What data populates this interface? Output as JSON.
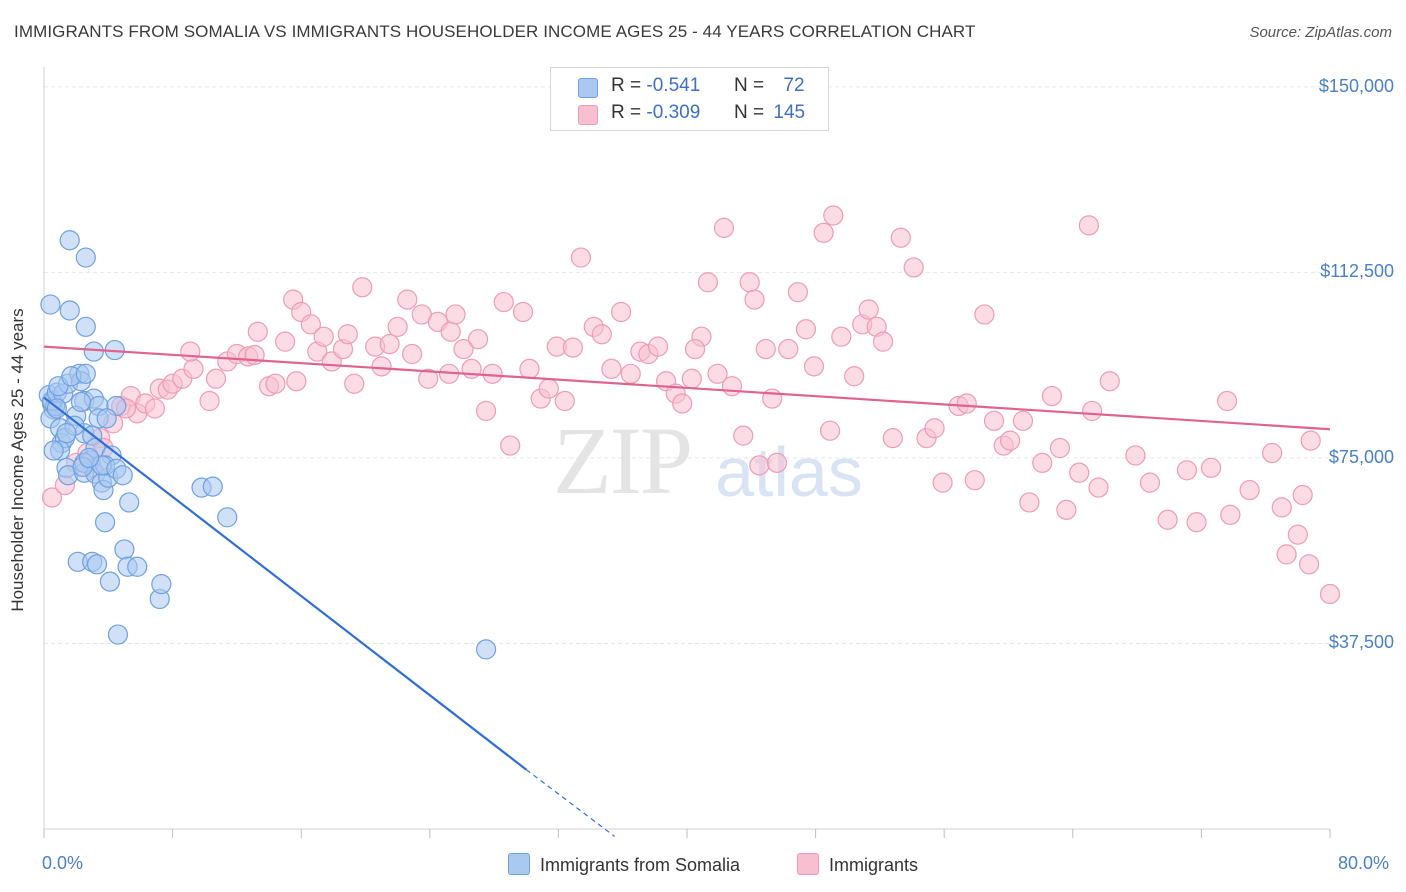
{
  "title": "IMMIGRANTS FROM SOMALIA VS IMMIGRANTS HOUSEHOLDER INCOME AGES 25 - 44 YEARS CORRELATION CHART",
  "source": "Source: ZipAtlas.com",
  "watermark": {
    "zip": "ZIP",
    "atlas": "atlas"
  },
  "legend_top": {
    "r_label": "R =",
    "n_label": "N =",
    "rows": [
      {
        "r": "-0.541",
        "n": "72"
      },
      {
        "r": "-0.309",
        "n": "145"
      }
    ]
  },
  "colors": {
    "blue_fill": "#a9c9f0",
    "blue_stroke": "#6fa0df",
    "blue_line": "#2f6fd6",
    "pink_fill": "#f7bfd0",
    "pink_stroke": "#ee9bb6",
    "pink_line": "#e0628f",
    "tick_text": "#4a7fc9",
    "grid": "#e6e6e6"
  },
  "chart_data": {
    "type": "scatter",
    "title": "IMMIGRANTS FROM SOMALIA VS IMMIGRANTS HOUSEHOLDER INCOME AGES 25 - 44 YEARS CORRELATION CHART",
    "xlabel": "",
    "ylabel": "Householder Income Ages 25 - 44 years",
    "xlim": [
      0,
      80
    ],
    "ylim": [
      0,
      153000
    ],
    "x_tick_labels": [
      "0.0%",
      "80.0%"
    ],
    "y_ticks": [
      {
        "value": 37500,
        "label": "$37,500"
      },
      {
        "value": 75000,
        "label": "$75,000"
      },
      {
        "value": 112500,
        "label": "$112,500"
      },
      {
        "value": 150000,
        "label": "$150,000"
      }
    ],
    "grid": true,
    "legend_position": "bottom-center",
    "series": [
      {
        "name": "Immigrants from Somalia",
        "color": "blue",
        "trend": {
          "x": [
            0,
            30,
            35.5
          ],
          "y": [
            87200,
            12000,
            -1500
          ],
          "solid_until": 30
        },
        "points": [
          [
            0.3,
            87700
          ],
          [
            0.5,
            86000
          ],
          [
            0.6,
            84800
          ],
          [
            0.4,
            83000
          ],
          [
            0.7,
            85500
          ],
          [
            0.5,
            86500
          ],
          [
            0.8,
            88200
          ],
          [
            0.4,
            106000
          ],
          [
            1.2,
            88000
          ],
          [
            1.5,
            90000
          ],
          [
            1.0,
            81000
          ],
          [
            1.1,
            78000
          ],
          [
            1.3,
            79000
          ],
          [
            1.0,
            76500
          ],
          [
            1.4,
            73000
          ],
          [
            1.5,
            71500
          ],
          [
            1.6,
            119000
          ],
          [
            2.6,
            115500
          ],
          [
            1.6,
            104800
          ],
          [
            2.6,
            101500
          ],
          [
            2.2,
            92000
          ],
          [
            2.3,
            90500
          ],
          [
            2.5,
            86500
          ],
          [
            3.1,
            96500
          ],
          [
            4.4,
            96800
          ],
          [
            3.1,
            87000
          ],
          [
            3.4,
            85500
          ],
          [
            4.5,
            85500
          ],
          [
            3.4,
            83000
          ],
          [
            2.5,
            80000
          ],
          [
            3.0,
            79500
          ],
          [
            2.9,
            74500
          ],
          [
            2.5,
            72000
          ],
          [
            3.2,
            77000
          ],
          [
            4.2,
            75500
          ],
          [
            2.5,
            74000
          ],
          [
            3.2,
            71800
          ],
          [
            3.6,
            70000
          ],
          [
            3.7,
            68500
          ],
          [
            4.0,
            71000
          ],
          [
            2.4,
            73200
          ],
          [
            2.1,
            54000
          ],
          [
            3.0,
            54000
          ],
          [
            3.3,
            53500
          ],
          [
            4.1,
            50000
          ],
          [
            5.0,
            56500
          ],
          [
            5.2,
            53000
          ],
          [
            5.8,
            53000
          ],
          [
            4.6,
            39300
          ],
          [
            3.8,
            62000
          ],
          [
            5.3,
            66000
          ],
          [
            7.2,
            46500
          ],
          [
            7.3,
            49500
          ],
          [
            9.8,
            69000
          ],
          [
            10.5,
            69200
          ],
          [
            11.4,
            63000
          ],
          [
            27.5,
            36300
          ],
          [
            2.0,
            83500
          ],
          [
            3.8,
            73500
          ],
          [
            0.9,
            89500
          ],
          [
            1.7,
            91500
          ],
          [
            2.6,
            92000
          ],
          [
            3.6,
            73500
          ],
          [
            0.8,
            85000
          ],
          [
            1.9,
            81500
          ],
          [
            2.3,
            86300
          ],
          [
            4.5,
            72800
          ],
          [
            0.6,
            76500
          ],
          [
            3.9,
            83000
          ],
          [
            1.4,
            80000
          ],
          [
            2.8,
            75000
          ],
          [
            4.9,
            71500
          ]
        ]
      },
      {
        "name": "Immigrants",
        "color": "pink",
        "trend": {
          "x": [
            0,
            80
          ],
          "y": [
            97500,
            80800
          ]
        },
        "points": [
          [
            0.5,
            67000
          ],
          [
            1.3,
            69500
          ],
          [
            2.0,
            74000
          ],
          [
            2.7,
            76000
          ],
          [
            3.0,
            73000
          ],
          [
            3.5,
            79000
          ],
          [
            3.7,
            77000
          ],
          [
            4.3,
            82000
          ],
          [
            4.8,
            85500
          ],
          [
            5.4,
            87500
          ],
          [
            5.8,
            84000
          ],
          [
            6.3,
            86000
          ],
          [
            6.9,
            85000
          ],
          [
            7.2,
            89000
          ],
          [
            7.7,
            88800
          ],
          [
            8.0,
            90000
          ],
          [
            8.6,
            91000
          ],
          [
            9.3,
            93000
          ],
          [
            10.3,
            86500
          ],
          [
            10.7,
            91000
          ],
          [
            11.4,
            94500
          ],
          [
            12.0,
            96000
          ],
          [
            12.7,
            95500
          ],
          [
            13.1,
            95800
          ],
          [
            13.3,
            100500
          ],
          [
            14.0,
            89500
          ],
          [
            14.4,
            90000
          ],
          [
            15.0,
            98500
          ],
          [
            15.5,
            107000
          ],
          [
            16.0,
            104500
          ],
          [
            16.6,
            102000
          ],
          [
            17.0,
            96500
          ],
          [
            17.4,
            99500
          ],
          [
            17.9,
            94500
          ],
          [
            18.6,
            97000
          ],
          [
            18.9,
            100000
          ],
          [
            19.3,
            90000
          ],
          [
            19.8,
            109500
          ],
          [
            20.6,
            97500
          ],
          [
            21.0,
            93500
          ],
          [
            21.5,
            98000
          ],
          [
            22.0,
            101500
          ],
          [
            22.6,
            107000
          ],
          [
            22.9,
            96000
          ],
          [
            23.5,
            104000
          ],
          [
            23.9,
            91000
          ],
          [
            24.5,
            102500
          ],
          [
            25.3,
            100500
          ],
          [
            25.6,
            104000
          ],
          [
            26.1,
            97000
          ],
          [
            26.6,
            93000
          ],
          [
            27.0,
            99000
          ],
          [
            27.5,
            84500
          ],
          [
            27.9,
            92000
          ],
          [
            28.6,
            106500
          ],
          [
            29.0,
            77500
          ],
          [
            29.8,
            104500
          ],
          [
            30.2,
            93000
          ],
          [
            30.9,
            87000
          ],
          [
            31.4,
            89000
          ],
          [
            31.9,
            97500
          ],
          [
            32.4,
            86500
          ],
          [
            32.9,
            97300
          ],
          [
            33.4,
            115500
          ],
          [
            34.2,
            101500
          ],
          [
            34.7,
            100000
          ],
          [
            35.3,
            93000
          ],
          [
            35.9,
            104500
          ],
          [
            36.5,
            92000
          ],
          [
            37.1,
            96500
          ],
          [
            37.6,
            96000
          ],
          [
            38.2,
            97500
          ],
          [
            38.7,
            90500
          ],
          [
            39.3,
            88000
          ],
          [
            39.7,
            86000
          ],
          [
            40.3,
            91000
          ],
          [
            40.9,
            99500
          ],
          [
            41.3,
            110500
          ],
          [
            41.9,
            92000
          ],
          [
            42.3,
            121500
          ],
          [
            42.8,
            89500
          ],
          [
            43.5,
            79500
          ],
          [
            43.9,
            110500
          ],
          [
            44.2,
            107000
          ],
          [
            44.5,
            73500
          ],
          [
            44.9,
            97000
          ],
          [
            45.3,
            87000
          ],
          [
            45.6,
            74000
          ],
          [
            46.3,
            97000
          ],
          [
            46.9,
            108500
          ],
          [
            47.4,
            101000
          ],
          [
            47.9,
            93500
          ],
          [
            48.5,
            120500
          ],
          [
            48.9,
            80500
          ],
          [
            49.1,
            124000
          ],
          [
            49.6,
            99500
          ],
          [
            50.4,
            91500
          ],
          [
            50.9,
            102000
          ],
          [
            51.3,
            105000
          ],
          [
            51.8,
            101500
          ],
          [
            52.2,
            98500
          ],
          [
            52.8,
            79000
          ],
          [
            53.3,
            119500
          ],
          [
            54.1,
            113500
          ],
          [
            54.9,
            79000
          ],
          [
            55.4,
            81000
          ],
          [
            55.9,
            70000
          ],
          [
            56.9,
            85500
          ],
          [
            57.4,
            86000
          ],
          [
            57.9,
            70500
          ],
          [
            58.5,
            104000
          ],
          [
            59.1,
            82500
          ],
          [
            59.7,
            77500
          ],
          [
            60.1,
            78500
          ],
          [
            60.9,
            82500
          ],
          [
            61.3,
            66000
          ],
          [
            62.1,
            74000
          ],
          [
            62.7,
            87500
          ],
          [
            63.2,
            77000
          ],
          [
            63.6,
            64500
          ],
          [
            64.4,
            72000
          ],
          [
            65.2,
            84500
          ],
          [
            65.6,
            69000
          ],
          [
            66.3,
            90500
          ],
          [
            67.9,
            75500
          ],
          [
            68.8,
            70000
          ],
          [
            69.9,
            62500
          ],
          [
            71.1,
            72500
          ],
          [
            71.7,
            62000
          ],
          [
            72.6,
            73000
          ],
          [
            73.6,
            86500
          ],
          [
            73.8,
            63500
          ],
          [
            75.0,
            68500
          ],
          [
            76.4,
            76000
          ],
          [
            77.0,
            65000
          ],
          [
            77.3,
            55500
          ],
          [
            78.0,
            59500
          ],
          [
            78.3,
            67500
          ],
          [
            78.7,
            53500
          ],
          [
            78.8,
            78500
          ],
          [
            80.0,
            47500
          ],
          [
            65.0,
            122000
          ],
          [
            5.1,
            85000
          ],
          [
            9.1,
            96500
          ],
          [
            15.7,
            90500
          ],
          [
            25.2,
            92000
          ],
          [
            40.5,
            97000
          ]
        ]
      }
    ]
  },
  "ylabel_text": "Householder Income Ages 25 - 44 years",
  "x_tick_left": "0.0%",
  "x_tick_right": "80.0%"
}
